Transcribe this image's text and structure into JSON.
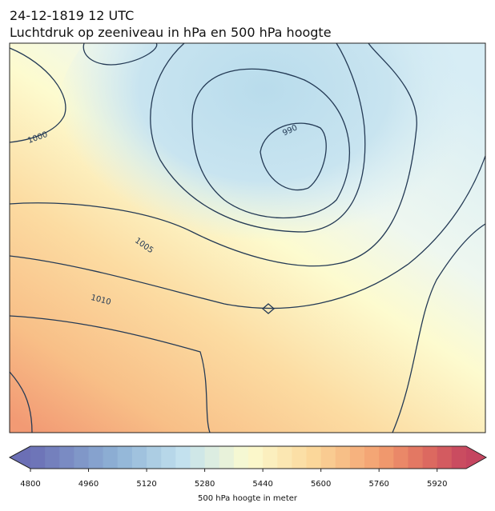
{
  "header": {
    "title": "24-12-1819 12 UTC",
    "subtitle": "Luchtdruk op zeeniveau in hPa en 500 hPa hoogte"
  },
  "contour_labels": [
    1000,
    990,
    1005,
    1010
  ],
  "colorbar": {
    "lim": [
      4800,
      6000
    ],
    "ticks": [
      4800,
      4960,
      5120,
      5280,
      5440,
      5600,
      5760,
      5920
    ],
    "label": "500 hPa hoogte in meter"
  }
}
